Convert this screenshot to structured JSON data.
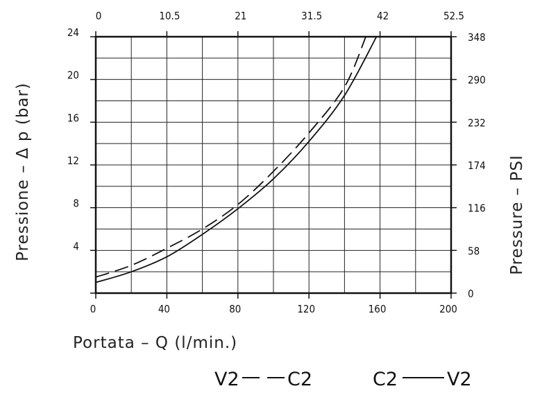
{
  "chart_data": {
    "type": "line",
    "xlabel": "Portata  –  Q  (l/min.)",
    "ylabel": "Pressione  –  Δ p  (bar)",
    "ylabel_right": "Pressure  –  PSI",
    "xlim": [
      0,
      200
    ],
    "ylim": [
      0,
      24
    ],
    "x_ticks": [
      "0",
      "40",
      "80",
      "120",
      "160",
      "200"
    ],
    "x_ticks_top": [
      "0",
      "10.5",
      "21",
      "31.5",
      "42",
      "52.5"
    ],
    "y_ticks": [
      "4",
      "8",
      "12",
      "16",
      "20",
      "24"
    ],
    "y_ticks_right": [
      "0",
      "58",
      "116",
      "174",
      "232",
      "290",
      "348"
    ],
    "grid": true,
    "series": [
      {
        "name": "V2 — — C2",
        "style": "dashed",
        "points": [
          [
            0,
            1.5
          ],
          [
            20,
            2.6
          ],
          [
            40,
            4.2
          ],
          [
            60,
            6.0
          ],
          [
            80,
            8.3
          ],
          [
            100,
            11.4
          ],
          [
            120,
            15.0
          ],
          [
            140,
            19.3
          ],
          [
            152,
            24
          ]
        ]
      },
      {
        "name": "C2 ——— V2",
        "style": "solid",
        "points": [
          [
            0,
            1.0
          ],
          [
            20,
            2.0
          ],
          [
            40,
            3.4
          ],
          [
            60,
            5.5
          ],
          [
            80,
            7.9
          ],
          [
            100,
            10.7
          ],
          [
            120,
            14.2
          ],
          [
            140,
            18.5
          ],
          [
            158,
            24
          ]
        ]
      }
    ],
    "legend": [
      {
        "left": "V2",
        "right": "C2",
        "style": "dashed"
      },
      {
        "left": "C2",
        "right": "V2",
        "style": "solid"
      }
    ]
  }
}
